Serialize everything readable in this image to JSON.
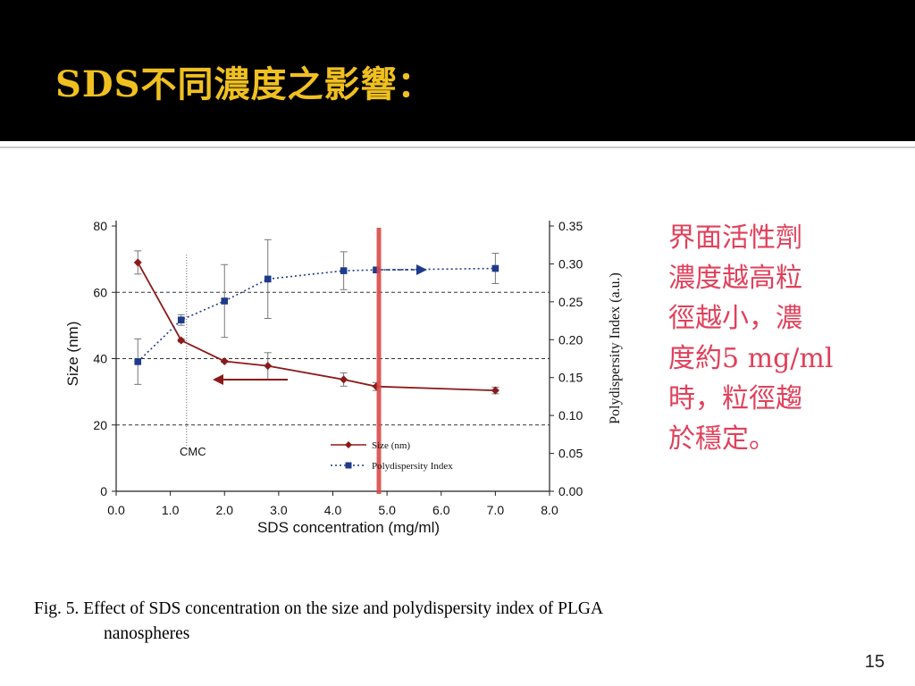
{
  "slide": {
    "title": "SDS不同濃度之影響：",
    "side_note_lines": [
      "界面活性劑",
      "濃度越高粒",
      "徑越小，濃",
      "度約5 mg/ml",
      "時，粒徑趨",
      "於穩定。"
    ],
    "caption_line1": "Fig. 5. Effect of SDS concentration on the size and polydispersity index of  PLGA",
    "caption_line2": "nanospheres",
    "page_number": "15"
  },
  "colors": {
    "title_bar": "#000000",
    "title_text": "#f0c020",
    "size_series": "#8b1a1a",
    "pdi_series": "#1e3a8a",
    "highlight_line": "#d84a4a",
    "side_note_text": "#e0405a"
  },
  "chart_data": {
    "type": "line",
    "title": "",
    "xlabel": "SDS concentration (mg/ml)",
    "ylabel": "Size (nm)",
    "y2label": "Polydispersity Index (a.u.)",
    "xlim": [
      0,
      8
    ],
    "ylim": [
      0,
      80
    ],
    "y2lim": [
      0,
      0.35
    ],
    "x_ticks": [
      "0.0",
      "1.0",
      "2.0",
      "3.0",
      "4.0",
      "5.0",
      "6.0",
      "7.0",
      "8.0"
    ],
    "y_ticks": [
      "0",
      "20",
      "40",
      "60",
      "80"
    ],
    "y2_ticks": [
      "0.00",
      "0.05",
      "0.10",
      "0.15",
      "0.20",
      "0.25",
      "0.30",
      "0.35"
    ],
    "grid": "dashed horizontal at 20, 40, 60",
    "legend": "bottom-right",
    "series": [
      {
        "name": "Size (nm)",
        "axis": "left",
        "marker": "diamond",
        "line": "solid",
        "x": [
          0.4,
          1.2,
          2.0,
          2.8,
          4.2,
          4.8,
          7.0
        ],
        "y": [
          69,
          45.5,
          39.2,
          37.8,
          33.7,
          31.6,
          30.4
        ],
        "err": [
          3.5,
          0.5,
          0.3,
          4,
          2,
          1.2,
          1
        ]
      },
      {
        "name": "Polydispersity Index",
        "axis": "right",
        "marker": "square",
        "line": "dotted",
        "x": [
          0.4,
          1.2,
          2.0,
          2.8,
          4.2,
          4.8,
          7.0
        ],
        "y": [
          0.171,
          0.226,
          0.251,
          0.28,
          0.291,
          0.292,
          0.294
        ],
        "err": [
          0.03,
          0.007,
          0.048,
          0.052,
          0.025,
          0.003,
          0.02
        ]
      }
    ],
    "annotations": [
      {
        "text": "CMC",
        "x": 1.3
      }
    ]
  }
}
